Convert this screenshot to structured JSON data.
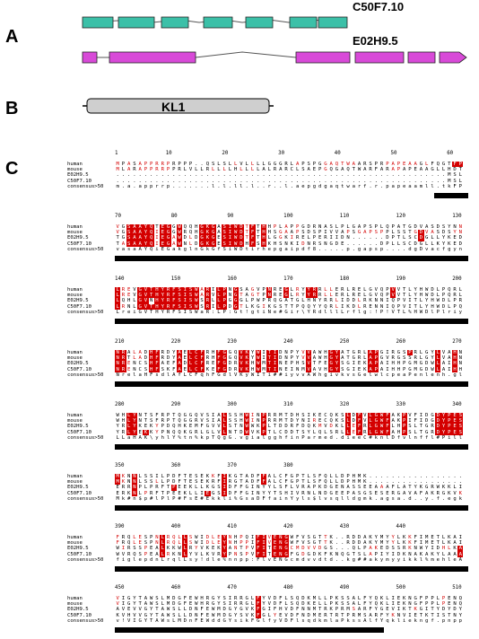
{
  "panels": {
    "A": "A",
    "B": "B",
    "C": "C"
  },
  "genes": {
    "gene1": {
      "name": "C50F7.10",
      "color": "#3cc0a8"
    },
    "gene2": {
      "name": "E02H9.5",
      "color": "#d84ad8"
    }
  },
  "domain": {
    "name": "KL1",
    "color": "#cfcfcf"
  },
  "alignment": {
    "highlight_color": "#d40000",
    "row_names": [
      "human",
      "mouse",
      "E02H9.5",
      "C50F7.10",
      "consensus>50"
    ],
    "blocks": [
      {
        "ticks": [
          "1",
          "10",
          "20",
          "30",
          "40",
          "50",
          "60"
        ],
        "rows": [
          "MPASAPPRRPRPPP..QSLSLLVLLLLGGGRLAPSPGGAQTWAARSPRPAPEAAGLFQGTFPDGFLWA",
          "MLARAPPRRPPRLVLLRLLLLHLLLLALRARCLSAEPGQGAQTWARFARAPAPEAAGLLHDTFPDGFLWA",
          "...........................................................MSLAPVRFENFLWA",
          "...........................................................MSLRPPRFENVLWA"
        ],
        "consensus": "m.a.apprrp.......l.l.ll.l..r..l.aepgdgaqtwarf.r.papeaamll.tkFPdnFllA"
      },
      {
        "ticks": [
          "70",
          "80",
          "90",
          "100",
          "110",
          "120",
          "130"
        ],
        "rows": [
          "VGSAAYQTEGGWQQHGKGASIWDTFTHHPLAPPGDRNASLPLGAPSPLQPATGDVASDSYNNVFRDTEA",
          "VGSAAYQIEGGWRQHGKGASIWDTFTHHSGAAPSDSPIVVAPSGAPSPPLSSTGDVASDSYNNVYRDTEG",
          "TGSAAYQIEGAWDLDGKGESIWDTFTHLGGKIRELPERIIDN......DPTLSCDGLLYKEDVALM",
          "TASAAYQIEGAWNLDGKGESIWDHFSHKHSNKIDNRSNGDE......DPLLSCDGLLKYKEDVAL"
        ],
        "consensus": "vasaAYQiEGakglnGkGfSiWDtirhepgaipdf8.....p.gapsp....dgDvacfgynfeDvel"
      },
      {
        "ticks": [
          "140",
          "150",
          "160",
          "170",
          "180",
          "190",
          "200"
        ],
        "rows": [
          "LREVGVTHYRFSISWARILPNGSAGVPNREGLRYYRRLLERLRELGVQPVVTLYHWDLPQRLQDAYGGWA",
          "LREVGVTHYRFSISWARVLPNGTAGTPNREGLRYYRRLLERLRELGVQPVVTLYHWDLPQRLQDTYGGWA",
          "LQHLGVNHYRFSISWSRLLPGGGLPWPRQGATGLHNYRRLIDDLRKNNIQPVITLYHWDLPRELNGTWQP",
          "LRNLGVTHYRFSISWSRILPDGTLKGIKGSTTPQQYYQRLIKDLRENNIQPVITLYHWDLPQLLNNGWLG"
        ],
        "consensus": "LreiGVTHYRFSISWaR:LP:Gt!gtiNe#Gir\\YRdlllLrflg:!P!VTL%HWDlPlriyDnyggWl"
      },
      {
        "ticks": [
          "210",
          "220",
          "230",
          "240",
          "250",
          "260",
          "270"
        ],
        "rows": [
          "NRALADHFRDYAELCFRHFGGQVKYWITIDNPYVVAWHGYATGRLAPGIRGSPRLGYLVAHNLLLAHAKV",
          "NRTLADHFRDYAELCFRHFGGQVKYWITIDNPYVVAWHGYATGRLAPGVRGSSRLGYLVAHNLLLAHAKV",
          "NRENCSHFAEFADLCFREFGDRVKHWMTINEPHSVTFEGYSGIEKAPAIHHPGMGDWLAIHNILLAHAKV",
          "NRENCSHFSKFAELCFKEFGDRVKHWMTINEINMVAVHGYSGIEKAPAIHHPGMGDWLAIHHVLLAHAKV"
        ],
        "consensus": "NrelaHFsdlAfLCFqhFGdlVKyWITi##iyvvAWhgivkvsGelwlcpeaPenlenh.glqlvAhNl"
      },
      {
        "ticks": [
          "280",
          "290",
          "300",
          "310",
          "320",
          "330",
          "340"
        ],
        "rows": [
          "WHLYNTSFRPTQGGQVSIALSSHWINPRRMTDHSIKECQKSLDFVLGWFAKPVFIDGDYPESMKNNLSSI",
          "WHLYNTSFRPTQGGRVSIALSSHWINPRRMTDYNIRECQKSLDFVLGWFAKPIFIDGDYPESMKNNLSSL",
          "YRLYKEKYPDQHKEMFGVVLSTNWWKPLTDDRFDQKMVDKLLEFRLGWFLHPSLTGRDYPESVQKEMRNK",
          "YRLYEKKYPNQQKGRLGLVLNTDWVKPTLCDDTSYLQLSRLLEFRLGWFAHPSLTGRDYPESLKRELQEK"
        ],
        "consensus": "LLaHAK\\yhlY%tn%kpTQgG.vgialgghfinParmed.dieeC#knlDfvlnffl#Pilld#GDYPes"
      },
      {
        "ticks": [
          "350",
          "360",
          "370",
          "380"
        ],
        "rows": [
          "MKNNLSSILPDFTESEKKFIKGTADFFALCFGPTLSFQLLDPHMK..........................",
          "MKNNLSSLLPDFTESEKRFIRGTADFFALCFGPTLSFQLLDPHMK..........................",
          "ERRNPLPRFTPEEKLLKGSIDFFGINYYLSFLVRAPKDGENASSEEAAAFLATYKGRWKKLIGHDT",
          "ERKNLPRFTPEEKLLIEGSIDFFGINYYTSHIVRNLNDGEEPASGSESERGAVAFAKRGKVKKLGHDT"
        ],
        "consensus": "Mk#n$p#lPlP#FsE#Ekkli%GsaDFfainYyls$lvsqlldgmk.agsa.d..y.f.egkwdkicgpt"
      },
      {
        "ticks": [
          "390",
          "400",
          "410",
          "420",
          "430",
          "440"
        ],
        "rows": [
          "FRQLESPNLRQLLSWIDLEYNHPQIFIVENGWFVSGTTK..RDDAKYMYYLKKFIMETLKAIKLDGVD",
          "FRQLESPNLRQLLSWIDLEYNHPPIFIVENGWFVSGTTK..RDDAKYMYYLKKFIMETLKAIRLDGVD",
          "WIRSSPEALKKWLRYVKEKYANTPVFITENGCMDVVDGS...QLPAKEDSSRKNWYIDHLKAALEAIKED",
          "WVRQSPEALRKNLYVLKVRYPNSPVFITENGFGDGDKFKNQGTSLAPIYIDKNAKAKYLAAALEAIRKD"
        ],
        "consensus": "figlepdnLrqlLsy!dle%nnpp:FlvENGcmdvvdtd..kg##akymyyikkl%mehleAialldfG"
      },
      {
        "ticks": [
          "450",
          "460",
          "470",
          "480",
          "490",
          "500",
          "510"
        ],
        "rows": [
          "VIGYTAWSLMDGFEWHRGYSIRRGLFYVDFLSQDKMLLPKSSALFYQKLIEKNGFPPLPENQPLEGTFPCD",
          "VIGYTAWSLMDGFEWHRGYSIRRGLFYVDFLSQDKELLPKSSALFYQKLIEKNGFPPLPENQPLEGTFPCD",
          "AVEVVGYTAWSLLDNFEWMDGYGVKFGIFHVDFNNMTRKPRMSARFYGEVIKTKGITYDYDYEHEH",
          "KVHVVGYTAWSLLDNFEWMDGYSVKFGLYEVDFNDMERTRTPRMSARFYKNVIETKTISTNYDYEH"
        ],
        "consensus": "v!VIGYTAWsLMDnFEWddGYsikFGlfyVDFlsqdkmlaPkssAlfYqkliekngf.pnppenqpleg"
      }
    ]
  }
}
